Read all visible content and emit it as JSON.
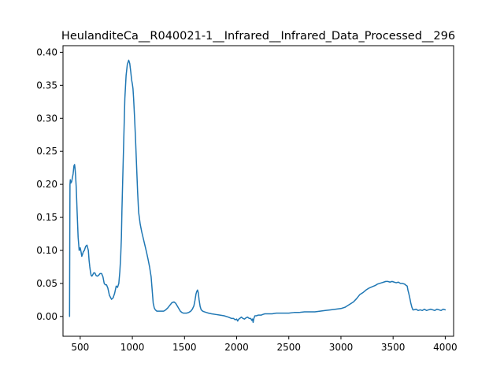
{
  "chart_data": {
    "type": "line",
    "title": "HeulanditeCa__R040021-1__Infrared__Infrared_Data_Processed__296",
    "xlabel": "",
    "ylabel": "",
    "xlim": [
      335,
      4080
    ],
    "ylim": [
      -0.03,
      0.41
    ],
    "x_ticks": [
      500,
      1000,
      1500,
      2000,
      2500,
      3000,
      3500,
      4000
    ],
    "x_tick_labels": [
      "500",
      "1000",
      "1500",
      "2000",
      "2500",
      "3000",
      "3500",
      "4000"
    ],
    "y_ticks": [
      0.0,
      0.05,
      0.1,
      0.15,
      0.2,
      0.25,
      0.3,
      0.35,
      0.4
    ],
    "y_tick_labels": [
      "0.00",
      "0.05",
      "0.10",
      "0.15",
      "0.20",
      "0.25",
      "0.30",
      "0.35",
      "0.40"
    ],
    "grid": false,
    "colors": {
      "series": "#1f77b4"
    },
    "series": [
      {
        "x": [
          398,
          400,
          402,
          405,
          410,
          418,
          425,
          432,
          440,
          446,
          450,
          455,
          462,
          470,
          480,
          490,
          500,
          508,
          515,
          522,
          530,
          540,
          552,
          565,
          578,
          585,
          592,
          598,
          605,
          612,
          620,
          630,
          640,
          652,
          663,
          675,
          690,
          705,
          718,
          730,
          740,
          752,
          765,
          780,
          800,
          815,
          830,
          845,
          858,
          870,
          880,
          888,
          895,
          900,
          908,
          918,
          928,
          940,
          952,
          965,
          975,
          985,
          993,
          1000,
          1006,
          1012,
          1020,
          1030,
          1040,
          1050,
          1060,
          1075,
          1090,
          1105,
          1120,
          1135,
          1150,
          1165,
          1180,
          1190,
          1200,
          1210,
          1220,
          1235,
          1250,
          1265,
          1280,
          1300,
          1320,
          1340,
          1360,
          1380,
          1400,
          1415,
          1430,
          1445,
          1460,
          1475,
          1490,
          1505,
          1520,
          1540,
          1560,
          1575,
          1590,
          1600,
          1610,
          1618,
          1625,
          1632,
          1640,
          1650,
          1660,
          1675,
          1690,
          1710,
          1730,
          1760,
          1800,
          1840,
          1880,
          1920,
          1950,
          1970,
          1985,
          2000,
          2010,
          2020,
          2030,
          2045,
          2060,
          2075,
          2090,
          2105,
          2120,
          2135,
          2145,
          2152,
          2158,
          2165,
          2175,
          2190,
          2205,
          2220,
          2235,
          2250,
          2270,
          2300,
          2340,
          2380,
          2420,
          2460,
          2500,
          2550,
          2600,
          2650,
          2700,
          2750,
          2800,
          2850,
          2900,
          2950,
          3000,
          3040,
          3080,
          3120,
          3150,
          3180,
          3210,
          3240,
          3270,
          3300,
          3330,
          3350,
          3370,
          3390,
          3410,
          3430,
          3450,
          3470,
          3490,
          3510,
          3530,
          3550,
          3570,
          3590,
          3610,
          3625,
          3635,
          3642,
          3650,
          3660,
          3670,
          3680,
          3690,
          3700,
          3720,
          3740,
          3760,
          3780,
          3800,
          3820,
          3840,
          3860,
          3880,
          3900,
          3920,
          3940,
          3960,
          3980,
          4000
        ],
        "y": [
          0.0,
          0.12,
          0.2,
          0.207,
          0.202,
          0.204,
          0.21,
          0.216,
          0.228,
          0.23,
          0.225,
          0.215,
          0.195,
          0.16,
          0.12,
          0.1,
          0.104,
          0.098,
          0.091,
          0.094,
          0.098,
          0.1,
          0.106,
          0.108,
          0.1,
          0.085,
          0.075,
          0.068,
          0.062,
          0.061,
          0.063,
          0.066,
          0.066,
          0.062,
          0.061,
          0.062,
          0.065,
          0.065,
          0.06,
          0.05,
          0.048,
          0.048,
          0.043,
          0.032,
          0.026,
          0.028,
          0.035,
          0.046,
          0.044,
          0.05,
          0.068,
          0.09,
          0.12,
          0.16,
          0.21,
          0.27,
          0.33,
          0.365,
          0.382,
          0.388,
          0.383,
          0.37,
          0.358,
          0.352,
          0.345,
          0.33,
          0.305,
          0.27,
          0.23,
          0.19,
          0.158,
          0.14,
          0.128,
          0.118,
          0.108,
          0.098,
          0.087,
          0.075,
          0.06,
          0.04,
          0.02,
          0.013,
          0.01,
          0.008,
          0.008,
          0.008,
          0.008,
          0.008,
          0.01,
          0.013,
          0.017,
          0.021,
          0.022,
          0.02,
          0.016,
          0.012,
          0.008,
          0.006,
          0.005,
          0.005,
          0.005,
          0.006,
          0.008,
          0.011,
          0.016,
          0.024,
          0.034,
          0.038,
          0.04,
          0.036,
          0.025,
          0.015,
          0.01,
          0.008,
          0.007,
          0.006,
          0.005,
          0.004,
          0.003,
          0.002,
          0.001,
          -0.001,
          -0.003,
          -0.003,
          -0.005,
          -0.004,
          -0.007,
          -0.004,
          -0.003,
          -0.001,
          -0.003,
          -0.004,
          -0.002,
          -0.001,
          -0.003,
          -0.003,
          -0.006,
          -0.004,
          -0.009,
          -0.003,
          0.001,
          0.001,
          0.002,
          0.002,
          0.002,
          0.003,
          0.004,
          0.004,
          0.004,
          0.005,
          0.005,
          0.005,
          0.005,
          0.006,
          0.006,
          0.007,
          0.007,
          0.007,
          0.008,
          0.009,
          0.01,
          0.011,
          0.012,
          0.014,
          0.018,
          0.022,
          0.027,
          0.033,
          0.036,
          0.04,
          0.043,
          0.045,
          0.047,
          0.049,
          0.05,
          0.051,
          0.052,
          0.053,
          0.053,
          0.052,
          0.053,
          0.052,
          0.051,
          0.052,
          0.05,
          0.05,
          0.049,
          0.047,
          0.046,
          0.04,
          0.035,
          0.028,
          0.02,
          0.014,
          0.01,
          0.01,
          0.011,
          0.009,
          0.01,
          0.009,
          0.011,
          0.009,
          0.01,
          0.011,
          0.01,
          0.009,
          0.011,
          0.01,
          0.009,
          0.011,
          0.01
        ]
      }
    ]
  }
}
